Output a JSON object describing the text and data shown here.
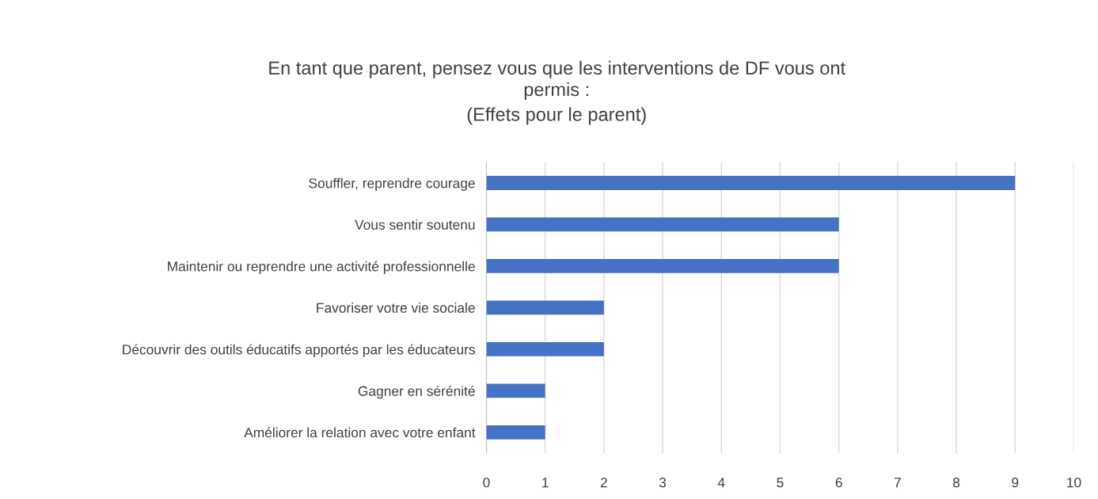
{
  "chart_data": {
    "type": "bar",
    "orientation": "horizontal",
    "title": "En tant que parent, pensez vous que les interventions de DF vous ont\npermis :",
    "subtitle": "(Effets pour le parent)",
    "categories": [
      "Souffler, reprendre courage",
      "Vous sentir soutenu",
      "Maintenir ou reprendre une activité professionnelle",
      "Favoriser votre vie sociale",
      "Découvrir des outils éducatifs apportés par les éducateurs",
      "Gagner en sérénité",
      "Améliorer la relation avec votre enfant"
    ],
    "values": [
      9,
      6,
      6,
      2,
      2,
      1,
      1
    ],
    "color": "#4472c4",
    "xlim": [
      0,
      10
    ],
    "xticks": [
      0,
      1,
      2,
      3,
      4,
      5,
      6,
      7,
      8,
      9,
      10
    ],
    "grid": "x",
    "legend": false
  }
}
